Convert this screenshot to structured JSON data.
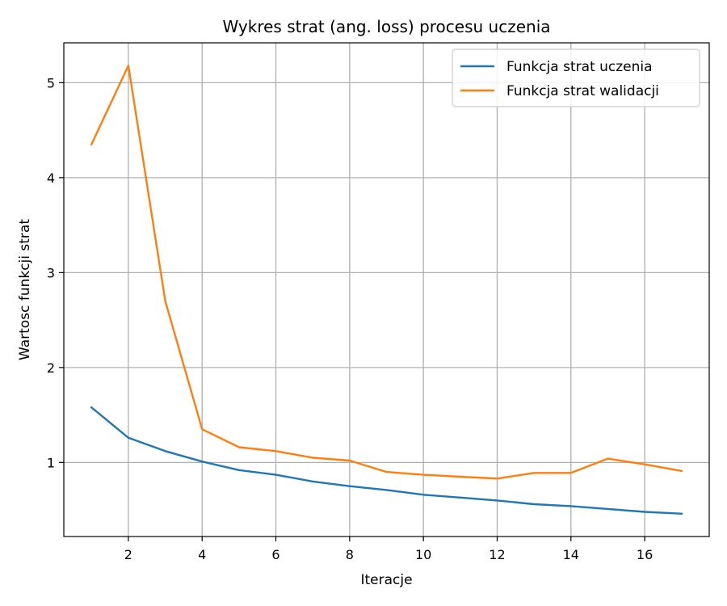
{
  "chart_data": {
    "type": "line",
    "title": "Wykres strat (ang. loss) procesu uczenia",
    "xlabel": "Iteracje",
    "ylabel": "Wartosc funkcji strat",
    "x": [
      1,
      2,
      3,
      4,
      5,
      6,
      7,
      8,
      9,
      10,
      11,
      12,
      13,
      14,
      15,
      16,
      17
    ],
    "xlim": [
      0.25,
      17.75
    ],
    "ylim": [
      0.22,
      5.42
    ],
    "xticks": [
      2,
      4,
      6,
      8,
      10,
      12,
      14,
      16
    ],
    "yticks": [
      1,
      2,
      3,
      4,
      5
    ],
    "grid": true,
    "legend_position": "top-right",
    "series": [
      {
        "name": "Funkcja strat uczenia",
        "color": "#1f77b4",
        "values": [
          1.58,
          1.26,
          1.12,
          1.01,
          0.92,
          0.87,
          0.8,
          0.75,
          0.71,
          0.66,
          0.63,
          0.6,
          0.56,
          0.54,
          0.51,
          0.48,
          0.46
        ]
      },
      {
        "name": "Funkcja strat walidacji",
        "color": "#ff7f0e",
        "values": [
          4.35,
          5.18,
          2.7,
          1.35,
          1.16,
          1.12,
          1.05,
          1.02,
          0.9,
          0.87,
          0.85,
          0.83,
          0.89,
          0.89,
          1.04,
          0.98,
          0.91
        ]
      }
    ]
  }
}
